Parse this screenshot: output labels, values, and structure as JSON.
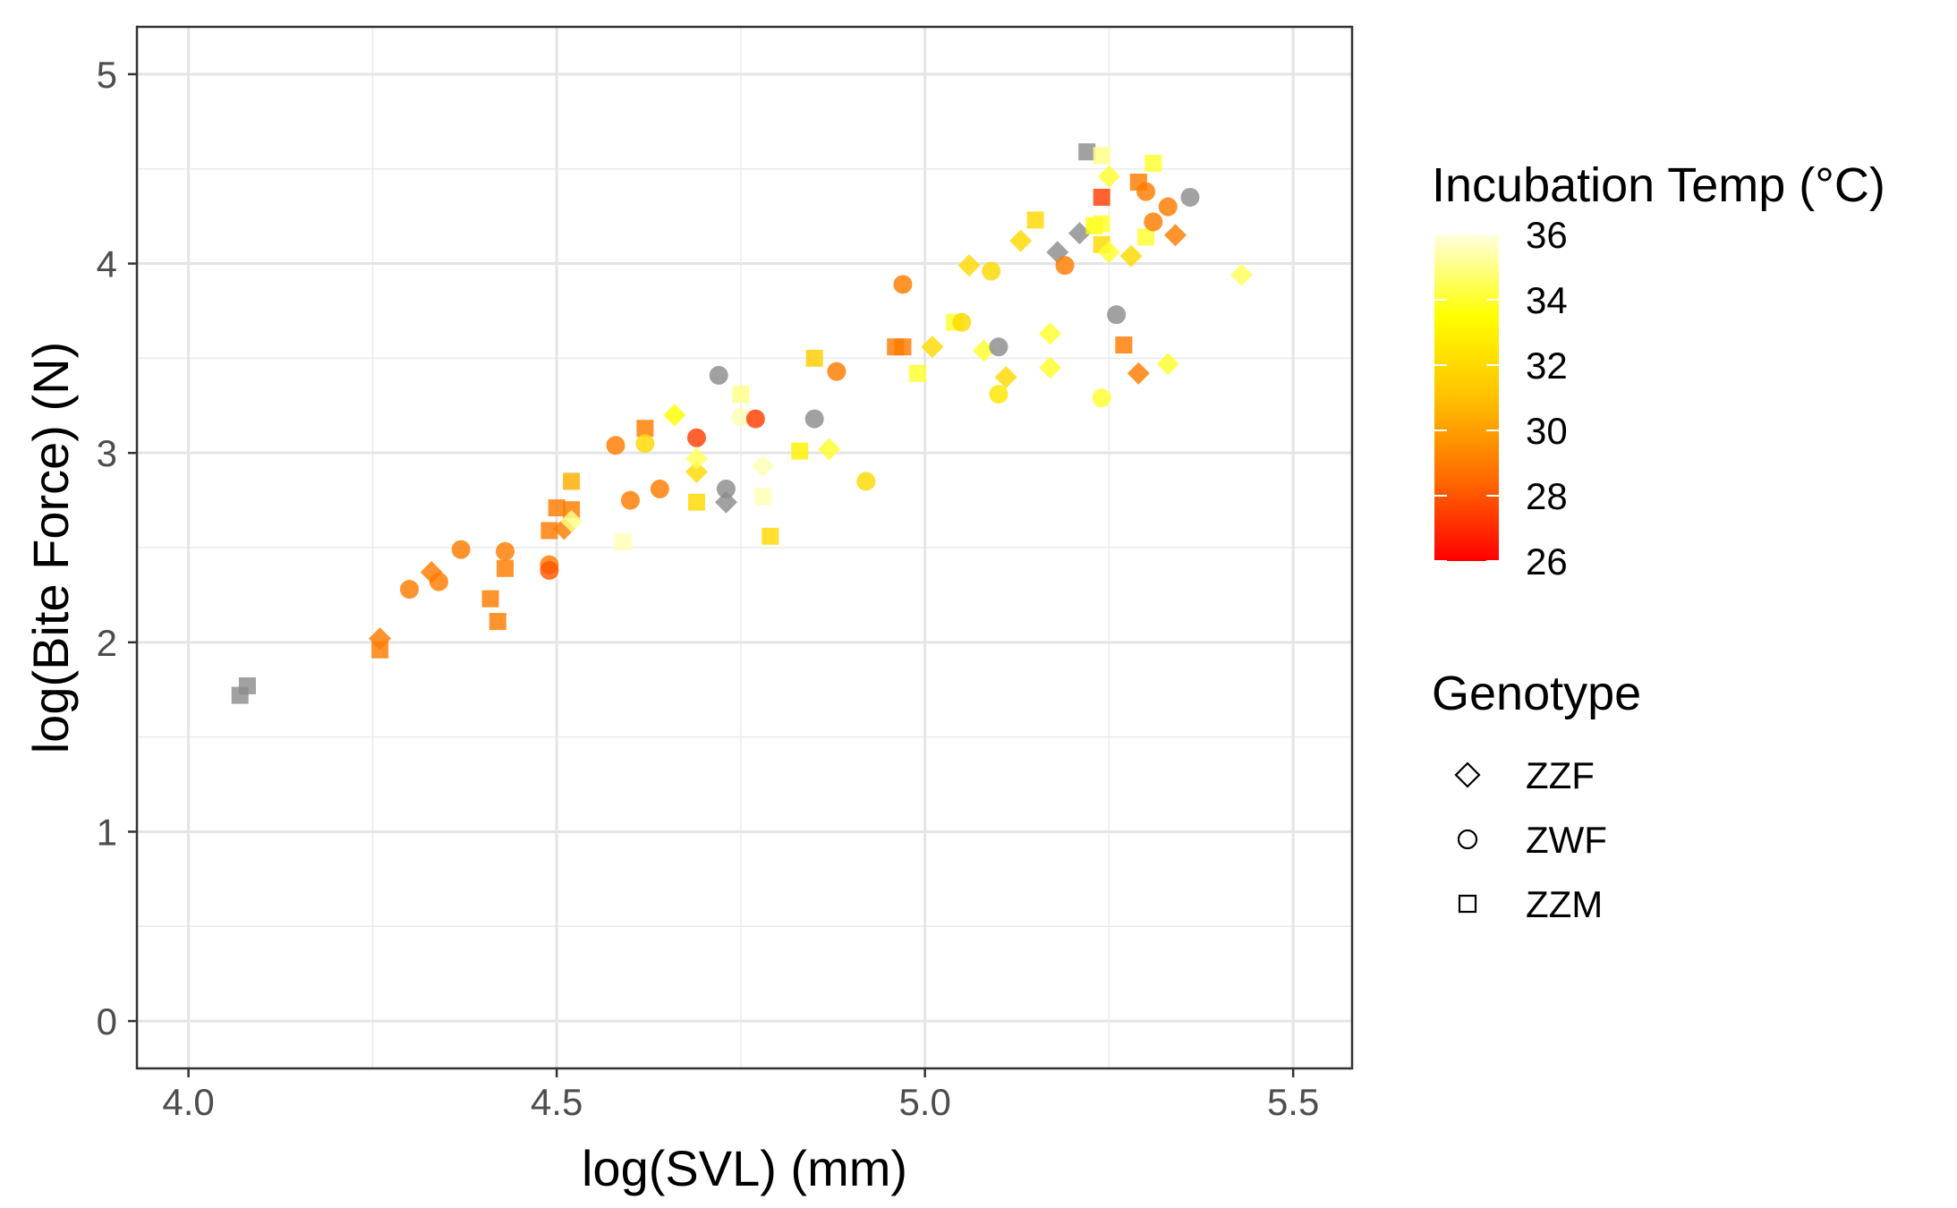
{
  "chart_data": {
    "type": "scatter",
    "xlabel": "log(SVL) (mm)",
    "ylabel": "log(Bite Force) (N)",
    "xlim": [
      3.93,
      5.58
    ],
    "ylim": [
      -0.25,
      5.25
    ],
    "x_ticks": [
      4.0,
      4.5,
      5.0,
      5.5
    ],
    "x_tick_labels": [
      "4.0",
      "4.5",
      "5.0",
      "5.5"
    ],
    "y_ticks": [
      0,
      1,
      2,
      3,
      4,
      5
    ],
    "y_tick_labels": [
      "0",
      "1",
      "2",
      "3",
      "4",
      "5"
    ],
    "grid": true,
    "legend_placement": "right",
    "color_legend": {
      "title": "Incubation Temp (°C)",
      "min": 26,
      "max": 36,
      "ticks": [
        36,
        34,
        32,
        30,
        28,
        26
      ],
      "colors": [
        "#ff0000",
        "#ff6a00",
        "#ffc000",
        "#ffff00",
        "#ffffe0"
      ]
    },
    "shape_legend": {
      "title": "Genotype",
      "items": [
        {
          "label": "ZZF",
          "shape": "diamond"
        },
        {
          "label": "ZWF",
          "shape": "circle"
        },
        {
          "label": "ZZM",
          "shape": "square"
        }
      ]
    },
    "na_color": "#8c8c8c",
    "points": [
      {
        "x": 4.07,
        "y": 1.72,
        "g": "ZZM",
        "t": null
      },
      {
        "x": 4.08,
        "y": 1.77,
        "g": "ZZM",
        "t": null
      },
      {
        "x": 4.26,
        "y": 2.02,
        "g": "ZZF",
        "t": 29
      },
      {
        "x": 4.26,
        "y": 1.96,
        "g": "ZZM",
        "t": 29
      },
      {
        "x": 4.3,
        "y": 2.28,
        "g": "ZWF",
        "t": 29
      },
      {
        "x": 4.33,
        "y": 2.37,
        "g": "ZZF",
        "t": 29
      },
      {
        "x": 4.34,
        "y": 2.32,
        "g": "ZWF",
        "t": 29
      },
      {
        "x": 4.37,
        "y": 2.49,
        "g": "ZWF",
        "t": 29
      },
      {
        "x": 4.41,
        "y": 2.23,
        "g": "ZZM",
        "t": 29
      },
      {
        "x": 4.42,
        "y": 2.11,
        "g": "ZZM",
        "t": 29
      },
      {
        "x": 4.43,
        "y": 2.48,
        "g": "ZWF",
        "t": 29
      },
      {
        "x": 4.43,
        "y": 2.39,
        "g": "ZZM",
        "t": 29
      },
      {
        "x": 4.49,
        "y": 2.41,
        "g": "ZWF",
        "t": 29
      },
      {
        "x": 4.49,
        "y": 2.38,
        "g": "ZWF",
        "t": 28
      },
      {
        "x": 4.49,
        "y": 2.59,
        "g": "ZZM",
        "t": 29
      },
      {
        "x": 4.5,
        "y": 2.71,
        "g": "ZZM",
        "t": 29
      },
      {
        "x": 4.51,
        "y": 2.6,
        "g": "ZZF",
        "t": 29
      },
      {
        "x": 4.52,
        "y": 2.7,
        "g": "ZZM",
        "t": 29
      },
      {
        "x": 4.52,
        "y": 2.85,
        "g": "ZZM",
        "t": 30.5
      },
      {
        "x": 4.52,
        "y": 2.64,
        "g": "ZZF",
        "t": 35
      },
      {
        "x": 4.58,
        "y": 3.04,
        "g": "ZWF",
        "t": 29
      },
      {
        "x": 4.59,
        "y": 2.53,
        "g": "ZZM",
        "t": 35.5
      },
      {
        "x": 4.6,
        "y": 2.75,
        "g": "ZWF",
        "t": 29
      },
      {
        "x": 4.62,
        "y": 3.13,
        "g": "ZZM",
        "t": 29
      },
      {
        "x": 4.62,
        "y": 3.05,
        "g": "ZWF",
        "t": 32
      },
      {
        "x": 4.64,
        "y": 2.81,
        "g": "ZWF",
        "t": 29
      },
      {
        "x": 4.66,
        "y": 3.2,
        "g": "ZZF",
        "t": 33.5
      },
      {
        "x": 4.69,
        "y": 3.08,
        "g": "ZWF",
        "t": 27.5
      },
      {
        "x": 4.69,
        "y": 2.9,
        "g": "ZZF",
        "t": 32
      },
      {
        "x": 4.69,
        "y": 2.74,
        "g": "ZZM",
        "t": 32
      },
      {
        "x": 4.69,
        "y": 2.97,
        "g": "ZZF",
        "t": 34.5
      },
      {
        "x": 4.72,
        "y": 3.41,
        "g": "ZWF",
        "t": null
      },
      {
        "x": 4.73,
        "y": 2.81,
        "g": "ZWF",
        "t": null
      },
      {
        "x": 4.73,
        "y": 2.74,
        "g": "ZZF",
        "t": null
      },
      {
        "x": 4.75,
        "y": 3.31,
        "g": "ZZM",
        "t": 35
      },
      {
        "x": 4.75,
        "y": 3.19,
        "g": "ZWF",
        "t": 35.5
      },
      {
        "x": 4.77,
        "y": 3.18,
        "g": "ZWF",
        "t": 27.5
      },
      {
        "x": 4.78,
        "y": 2.93,
        "g": "ZZF",
        "t": 35.5
      },
      {
        "x": 4.78,
        "y": 2.77,
        "g": "ZZM",
        "t": 35.5
      },
      {
        "x": 4.79,
        "y": 2.56,
        "g": "ZZM",
        "t": 32
      },
      {
        "x": 4.83,
        "y": 3.01,
        "g": "ZZM",
        "t": 33
      },
      {
        "x": 4.85,
        "y": 3.5,
        "g": "ZZM",
        "t": 31.5
      },
      {
        "x": 4.85,
        "y": 3.18,
        "g": "ZWF",
        "t": null
      },
      {
        "x": 4.87,
        "y": 3.02,
        "g": "ZZF",
        "t": 34
      },
      {
        "x": 4.88,
        "y": 3.43,
        "g": "ZWF",
        "t": 29
      },
      {
        "x": 4.92,
        "y": 2.85,
        "g": "ZWF",
        "t": 32
      },
      {
        "x": 4.96,
        "y": 3.56,
        "g": "ZZM",
        "t": 29
      },
      {
        "x": 4.97,
        "y": 3.56,
        "g": "ZZM",
        "t": 29
      },
      {
        "x": 4.97,
        "y": 3.89,
        "g": "ZWF",
        "t": 29
      },
      {
        "x": 4.99,
        "y": 3.42,
        "g": "ZZM",
        "t": 34
      },
      {
        "x": 5.01,
        "y": 3.56,
        "g": "ZZF",
        "t": 32
      },
      {
        "x": 5.04,
        "y": 3.69,
        "g": "ZZM",
        "t": 34
      },
      {
        "x": 5.05,
        "y": 3.69,
        "g": "ZWF",
        "t": 32
      },
      {
        "x": 5.06,
        "y": 3.99,
        "g": "ZZF",
        "t": 32
      },
      {
        "x": 5.08,
        "y": 3.54,
        "g": "ZZF",
        "t": 34
      },
      {
        "x": 5.09,
        "y": 3.96,
        "g": "ZWF",
        "t": 32
      },
      {
        "x": 5.1,
        "y": 3.56,
        "g": "ZWF",
        "t": null
      },
      {
        "x": 5.1,
        "y": 3.31,
        "g": "ZWF",
        "t": 32.5
      },
      {
        "x": 5.11,
        "y": 3.4,
        "g": "ZZF",
        "t": 32
      },
      {
        "x": 5.13,
        "y": 4.12,
        "g": "ZZF",
        "t": 32
      },
      {
        "x": 5.15,
        "y": 4.23,
        "g": "ZZM",
        "t": 32
      },
      {
        "x": 5.17,
        "y": 3.45,
        "g": "ZZF",
        "t": 34
      },
      {
        "x": 5.17,
        "y": 3.63,
        "g": "ZZF",
        "t": 34
      },
      {
        "x": 5.18,
        "y": 4.06,
        "g": "ZZF",
        "t": null
      },
      {
        "x": 5.19,
        "y": 3.99,
        "g": "ZWF",
        "t": 29
      },
      {
        "x": 5.21,
        "y": 4.16,
        "g": "ZZF",
        "t": null
      },
      {
        "x": 5.22,
        "y": 4.59,
        "g": "ZZM",
        "t": null
      },
      {
        "x": 5.23,
        "y": 4.2,
        "g": "ZZM",
        "t": 33.5
      },
      {
        "x": 5.24,
        "y": 4.57,
        "g": "ZZM",
        "t": 35
      },
      {
        "x": 5.24,
        "y": 4.35,
        "g": "ZZM",
        "t": 27.5
      },
      {
        "x": 5.24,
        "y": 4.1,
        "g": "ZZM",
        "t": 32
      },
      {
        "x": 5.24,
        "y": 4.21,
        "g": "ZZM",
        "t": 34
      },
      {
        "x": 5.24,
        "y": 3.29,
        "g": "ZWF",
        "t": 34
      },
      {
        "x": 5.25,
        "y": 4.46,
        "g": "ZZF",
        "t": 34
      },
      {
        "x": 5.25,
        "y": 4.06,
        "g": "ZZF",
        "t": 34
      },
      {
        "x": 5.26,
        "y": 3.73,
        "g": "ZWF",
        "t": null
      },
      {
        "x": 5.27,
        "y": 3.57,
        "g": "ZZM",
        "t": 29
      },
      {
        "x": 5.28,
        "y": 4.04,
        "g": "ZZF",
        "t": 32
      },
      {
        "x": 5.29,
        "y": 4.43,
        "g": "ZZM",
        "t": 29
      },
      {
        "x": 5.29,
        "y": 3.42,
        "g": "ZZF",
        "t": 29
      },
      {
        "x": 5.3,
        "y": 4.38,
        "g": "ZWF",
        "t": 29
      },
      {
        "x": 5.3,
        "y": 4.14,
        "g": "ZZM",
        "t": 34
      },
      {
        "x": 5.31,
        "y": 4.53,
        "g": "ZZM",
        "t": 34
      },
      {
        "x": 5.31,
        "y": 4.22,
        "g": "ZWF",
        "t": 29
      },
      {
        "x": 5.33,
        "y": 4.3,
        "g": "ZWF",
        "t": 29
      },
      {
        "x": 5.33,
        "y": 3.47,
        "g": "ZZF",
        "t": 34
      },
      {
        "x": 5.34,
        "y": 4.15,
        "g": "ZZF",
        "t": 29
      },
      {
        "x": 5.36,
        "y": 4.35,
        "g": "ZWF",
        "t": null
      },
      {
        "x": 5.43,
        "y": 3.94,
        "g": "ZZF",
        "t": 34.5
      }
    ]
  }
}
